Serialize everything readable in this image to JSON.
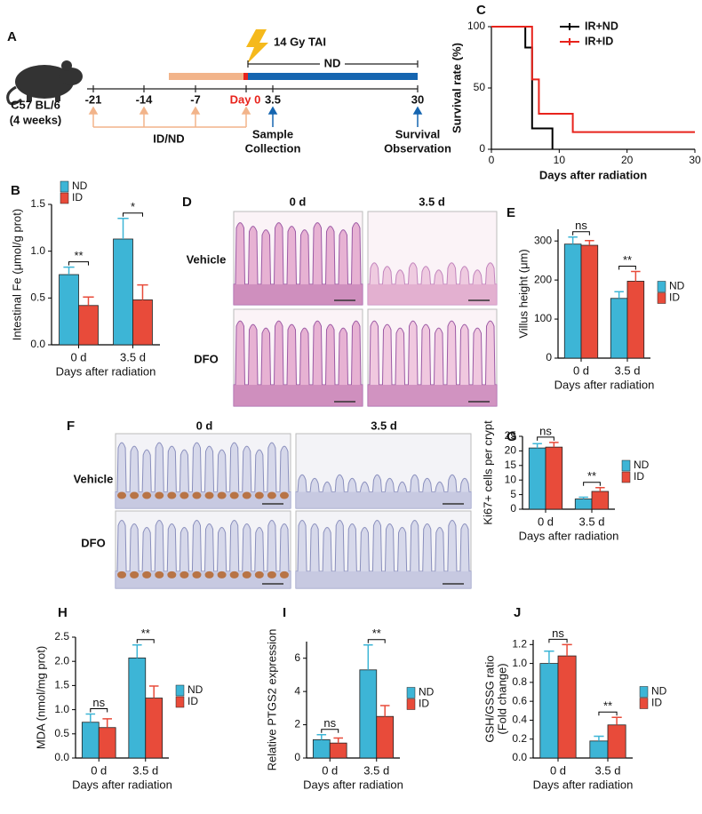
{
  "timeline": {
    "panel": "A",
    "strain": "C57 BL/6",
    "age": "(4 weeks)",
    "dose": "14 Gy TAI",
    "after": "ND",
    "ticks": [
      "-21",
      "-14",
      "-7",
      "Day 0",
      "3.5",
      "30"
    ],
    "diet": "ID/ND",
    "sample": [
      "Sample",
      "Collection"
    ],
    "survival": [
      "Survival",
      "Observation"
    ]
  },
  "histology": [
    {
      "panel": "D",
      "columns": [
        "0 d",
        "3.5 d"
      ],
      "rows": [
        "Vehicle",
        "DFO"
      ]
    },
    {
      "panel": "F",
      "columns": [
        "0 d",
        "3.5 d"
      ],
      "rows": [
        "Vehicle",
        "DFO"
      ]
    }
  ],
  "chart_data": [
    {
      "panel": "B",
      "type": "bar",
      "categories": [
        "0 d",
        "3.5 d"
      ],
      "series": [
        {
          "name": "ND",
          "color": "#3db5d6",
          "values": [
            0.75,
            1.13
          ],
          "errors": [
            0.08,
            0.22
          ]
        },
        {
          "name": "ID",
          "color": "#e84b3a",
          "values": [
            0.42,
            0.48
          ],
          "errors": [
            0.09,
            0.16
          ]
        }
      ],
      "significance": [
        "**",
        "*"
      ],
      "ylim": [
        0,
        1.5
      ],
      "yticks": [
        {
          "value": 0,
          "label": "0.0"
        },
        0.5,
        {
          "value": 1,
          "label": "1.0"
        },
        1.5
      ],
      "ylabel": "Intestinal Fe (μmol/g prot)",
      "xlabel": "Days after radiation",
      "legend": "upper left"
    },
    {
      "panel": "C",
      "type": "step",
      "series": [
        {
          "name": "IR+ND",
          "color": "#000000",
          "x": [
            0,
            5,
            6,
            9
          ],
          "values": [
            100,
            83,
            17,
            0
          ]
        },
        {
          "name": "IR+ID",
          "color": "#e8231c",
          "x": [
            0,
            6,
            7,
            12,
            30
          ],
          "values": [
            100,
            57,
            29,
            14,
            14
          ]
        }
      ],
      "xlim": [
        0,
        30
      ],
      "xticks": [
        0,
        10,
        20,
        30
      ],
      "ylim": [
        0,
        100
      ],
      "yticks": [
        0,
        50,
        100
      ],
      "ylabel": "Survival rate (%)",
      "xlabel": "Days after radiation",
      "legend": "upper right"
    },
    {
      "panel": "E",
      "type": "bar",
      "categories": [
        "0 d",
        "3.5 d"
      ],
      "series": [
        {
          "name": "ND",
          "color": "#3db5d6",
          "values": [
            292,
            153
          ],
          "errors": [
            18,
            17
          ]
        },
        {
          "name": "ID",
          "color": "#e84b3a",
          "values": [
            289,
            197
          ],
          "errors": [
            12,
            25
          ]
        }
      ],
      "significance": [
        "ns",
        "**"
      ],
      "ylim": [
        0,
        330
      ],
      "yticks": [
        0,
        100,
        200,
        300
      ],
      "ylabel": "Villus height (μm)",
      "xlabel": "Days after radiation",
      "legend": "right"
    },
    {
      "panel": "G",
      "type": "bar",
      "categories": [
        "0 d",
        "3.5 d"
      ],
      "series": [
        {
          "name": "ND",
          "color": "#3db5d6",
          "values": [
            21,
            3.5
          ],
          "errors": [
            1.5,
            0.6
          ]
        },
        {
          "name": "ID",
          "color": "#e84b3a",
          "values": [
            21.3,
            6.1
          ],
          "errors": [
            1.6,
            1.3
          ]
        }
      ],
      "significance": [
        "ns",
        "**"
      ],
      "ylim": [
        0,
        25
      ],
      "yticks": [
        0,
        5,
        10,
        15,
        20,
        25
      ],
      "ylabel": "Ki67+ cells per crypt",
      "xlabel": "Days after radiation",
      "legend": "right"
    },
    {
      "panel": "H",
      "type": "bar",
      "categories": [
        "0 d",
        "3.5 d"
      ],
      "series": [
        {
          "name": "ND",
          "color": "#3db5d6",
          "values": [
            0.74,
            2.07
          ],
          "errors": [
            0.17,
            0.27
          ]
        },
        {
          "name": "ID",
          "color": "#e84b3a",
          "values": [
            0.63,
            1.24
          ],
          "errors": [
            0.18,
            0.25
          ]
        }
      ],
      "significance": [
        "ns",
        "**"
      ],
      "ylim": [
        0,
        2.5
      ],
      "yticks": [
        {
          "value": 0,
          "label": "0.0"
        },
        0.5,
        {
          "value": 1,
          "label": "1.0"
        },
        1.5,
        {
          "value": 2,
          "label": "2.0"
        },
        2.5
      ],
      "ylabel": "MDA (nmol/mg prot)",
      "xlabel": "Days after radiation",
      "legend": "right"
    },
    {
      "panel": "I",
      "type": "bar",
      "categories": [
        "0 d",
        "3.5 d"
      ],
      "series": [
        {
          "name": "ND",
          "color": "#3db5d6",
          "values": [
            1.1,
            5.3
          ],
          "errors": [
            0.3,
            1.5
          ]
        },
        {
          "name": "ID",
          "color": "#e84b3a",
          "values": [
            0.9,
            2.5
          ],
          "errors": [
            0.3,
            0.65
          ]
        }
      ],
      "significance": [
        "ns",
        "**"
      ],
      "ylim": [
        0,
        7
      ],
      "yticks": [
        0,
        2,
        4,
        6
      ],
      "ylabel": "Relative PTGS2 expression",
      "xlabel": "Days after radiation",
      "legend": "right"
    },
    {
      "panel": "J",
      "type": "bar",
      "categories": [
        "0 d",
        "3.5 d"
      ],
      "series": [
        {
          "name": "ND",
          "color": "#3db5d6",
          "values": [
            1.0,
            0.18
          ],
          "errors": [
            0.13,
            0.05
          ]
        },
        {
          "name": "ID",
          "color": "#e84b3a",
          "values": [
            1.08,
            0.35
          ],
          "errors": [
            0.12,
            0.08
          ]
        }
      ],
      "significance": [
        "ns",
        "**"
      ],
      "ylim": [
        0,
        1.25
      ],
      "yticks": [
        {
          "value": 0,
          "label": "0.0"
        },
        0.2,
        0.4,
        0.6,
        0.8,
        {
          "value": 1,
          "label": "1.0"
        },
        1.2
      ],
      "ylabel": [
        "GSH/GSSG ratio",
        "(Fold change)"
      ],
      "xlabel": "Days after radiation",
      "legend": "right"
    }
  ]
}
